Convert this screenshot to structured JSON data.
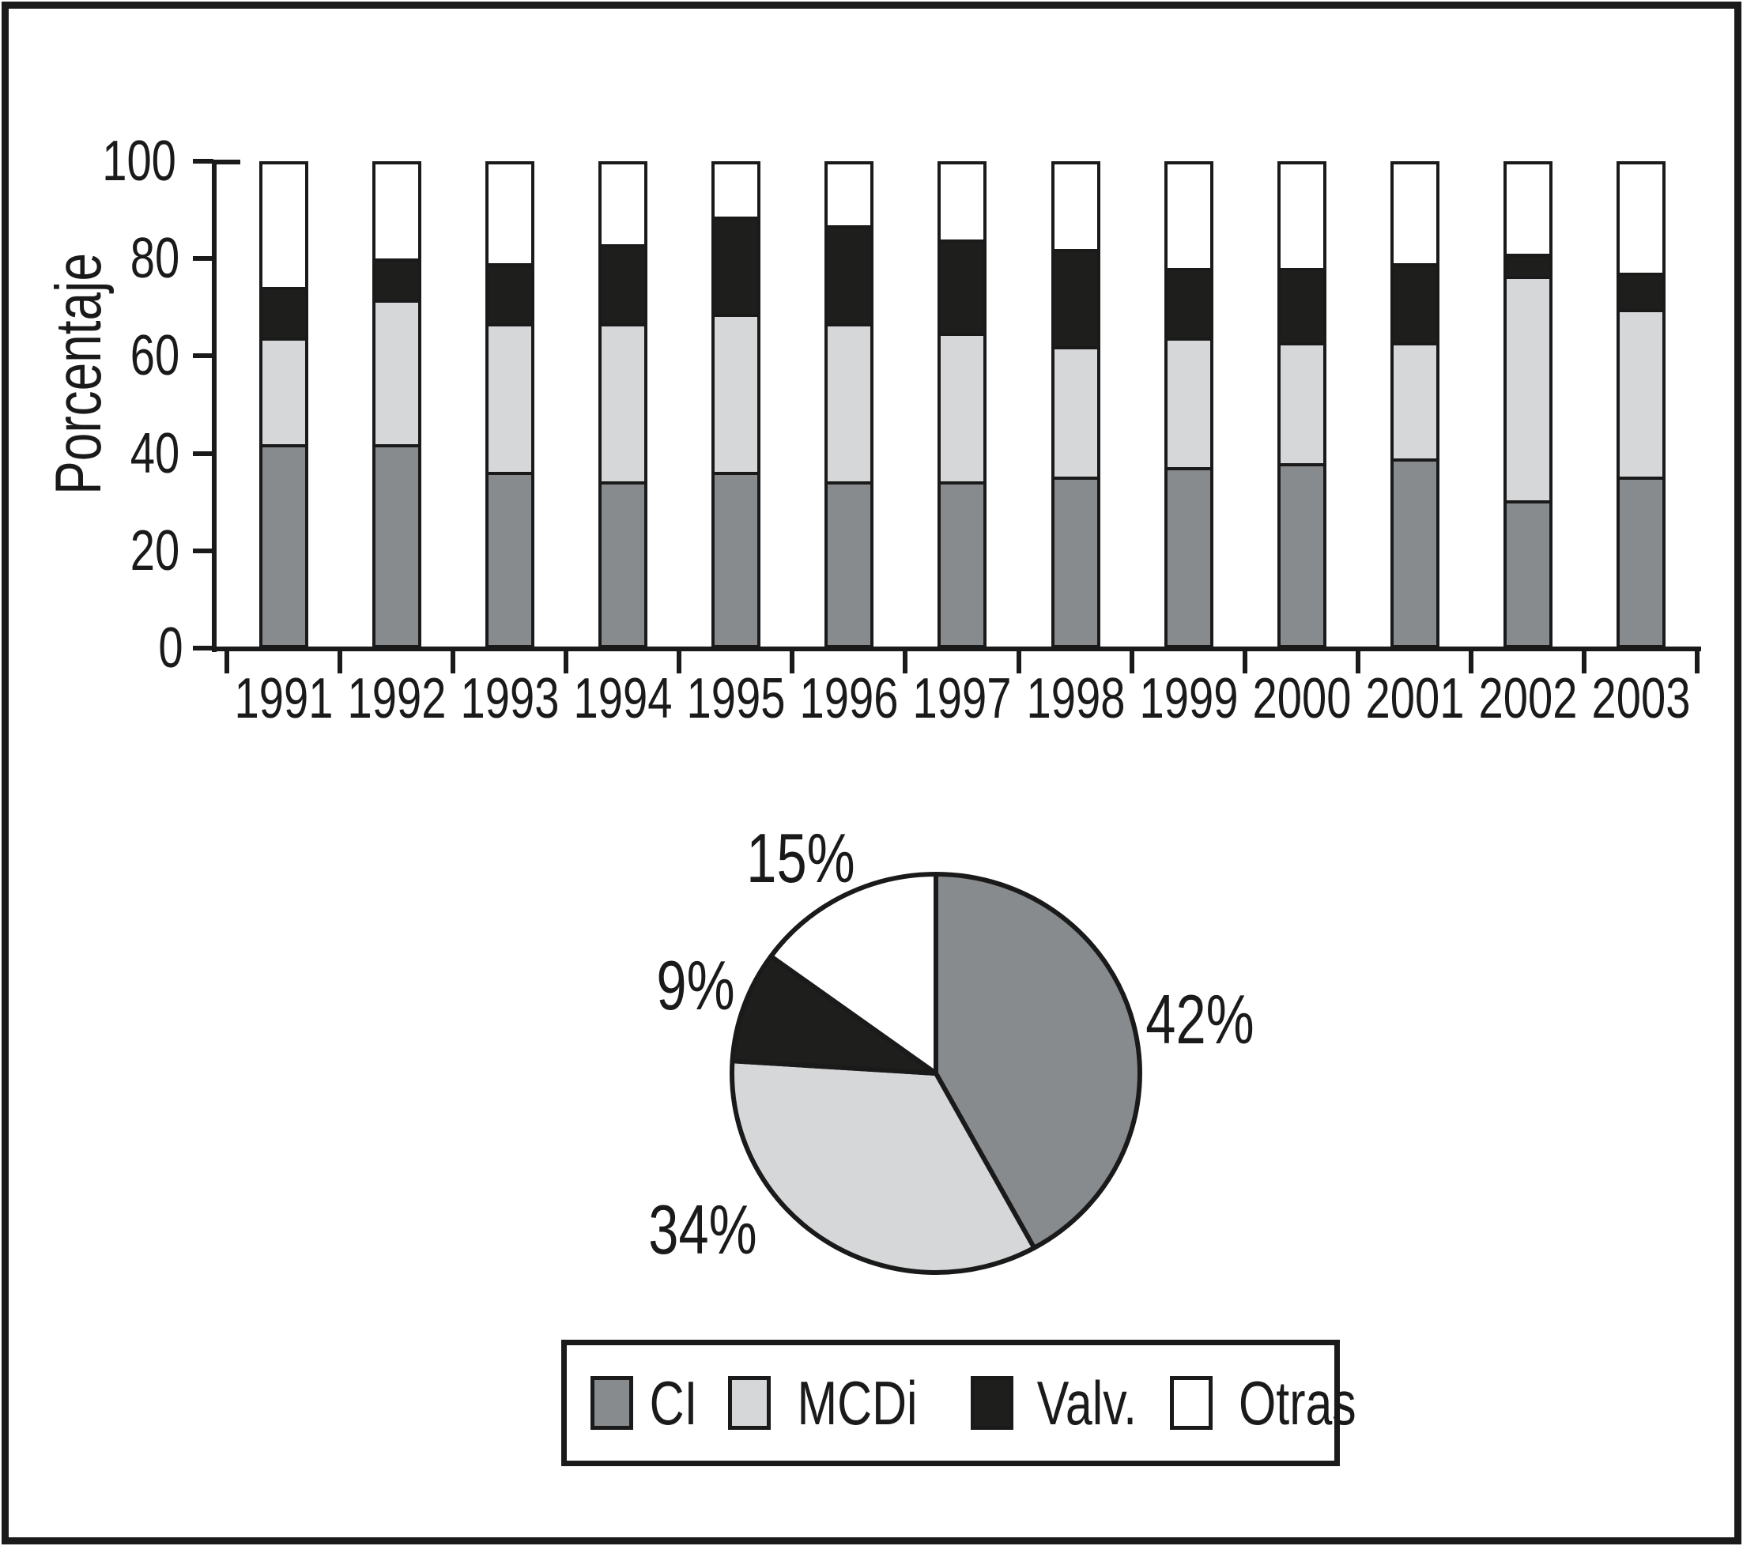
{
  "figure": {
    "background": "#ffffff",
    "frame_color": "#1a1a1a",
    "ink_color": "#1a1a1a"
  },
  "chart_data": [
    {
      "type": "bar",
      "stacked": true,
      "title": "",
      "xlabel": "",
      "ylabel": "Porcentaje",
      "ylim": [
        0,
        100
      ],
      "yticks": [
        0,
        20,
        40,
        60,
        80,
        100
      ],
      "grid": false,
      "categories": [
        "1991",
        "1992",
        "1993",
        "1994",
        "1995",
        "1996",
        "1997",
        "1998",
        "1999",
        "2000",
        "2001",
        "2002",
        "2003"
      ],
      "series": [
        {
          "name": "CI",
          "color": "#878b8e",
          "values": [
            42,
            42,
            36,
            34,
            36,
            34,
            34,
            35,
            37,
            38,
            39,
            30,
            35
          ]
        },
        {
          "name": "MCDi",
          "color": "#d5d7d8",
          "values": [
            22,
            30,
            31,
            33,
            33,
            33,
            31,
            27,
            27,
            25,
            24,
            47,
            35
          ]
        },
        {
          "name": "Valv.",
          "color": "#1e1e1c",
          "values": [
            10,
            8,
            12,
            16,
            20,
            20,
            19,
            20,
            14,
            15,
            16,
            4,
            7
          ]
        },
        {
          "name": "Otras",
          "color": "#ffffff",
          "values": [
            26,
            20,
            21,
            17,
            11,
            13,
            16,
            18,
            22,
            22,
            21,
            19,
            23
          ]
        }
      ]
    },
    {
      "type": "pie",
      "title": "",
      "direction": "clockwise",
      "start_angle_deg": 0,
      "slices": [
        {
          "name": "CI",
          "value": 42,
          "label": "42%",
          "color": "#878b8e"
        },
        {
          "name": "MCDi",
          "value": 34,
          "label": "34%",
          "color": "#d5d7d8"
        },
        {
          "name": "Valv.",
          "value": 9,
          "label": "9%",
          "color": "#1e1e1c"
        },
        {
          "name": "Otras",
          "value": 15,
          "label": "15%",
          "color": "#ffffff"
        }
      ]
    }
  ],
  "legend": {
    "items": [
      {
        "label": "CI",
        "color": "#878b8e"
      },
      {
        "label": "MCDi",
        "color": "#d5d7d8"
      },
      {
        "label": "Valv.",
        "color": "#1e1e1c"
      },
      {
        "label": "Otras",
        "color": "#ffffff"
      }
    ]
  }
}
